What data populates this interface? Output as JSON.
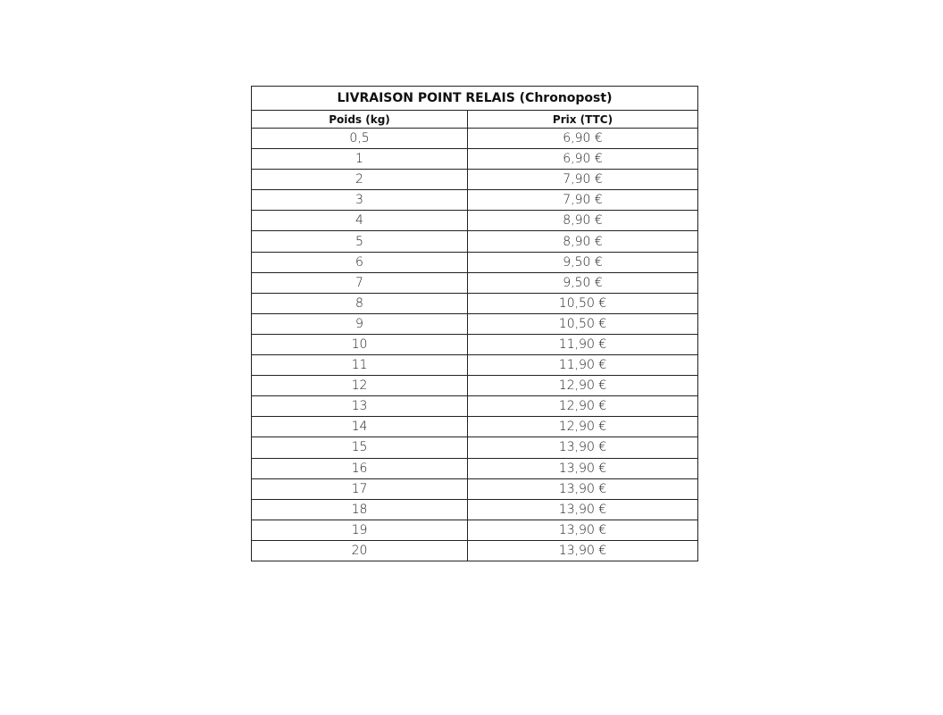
{
  "table": {
    "title": "LIVRAISON POINT RELAIS (Chronopost)",
    "headers": [
      "Poids (kg)",
      "Prix (TTC)"
    ],
    "rows": [
      [
        "0,5",
        "6,90 €"
      ],
      [
        "1",
        "6,90 €"
      ],
      [
        "2",
        "7,90 €"
      ],
      [
        "3",
        "7,90 €"
      ],
      [
        "4",
        "8,90 €"
      ],
      [
        "5",
        "8,90 €"
      ],
      [
        "6",
        "9,50 €"
      ],
      [
        "7",
        "9,50 €"
      ],
      [
        "8",
        "10,50 €"
      ],
      [
        "9",
        "10,50 €"
      ],
      [
        "10",
        "11,90 €"
      ],
      [
        "11",
        "11,90 €"
      ],
      [
        "12",
        "12,90 €"
      ],
      [
        "13",
        "12,90 €"
      ],
      [
        "14",
        "12,90 €"
      ],
      [
        "15",
        "13,90 €"
      ],
      [
        "16",
        "13,90 €"
      ],
      [
        "17",
        "13,90 €"
      ],
      [
        "18",
        "13,90 €"
      ],
      [
        "19",
        "13,90 €"
      ],
      [
        "20",
        "13,90 €"
      ]
    ]
  }
}
